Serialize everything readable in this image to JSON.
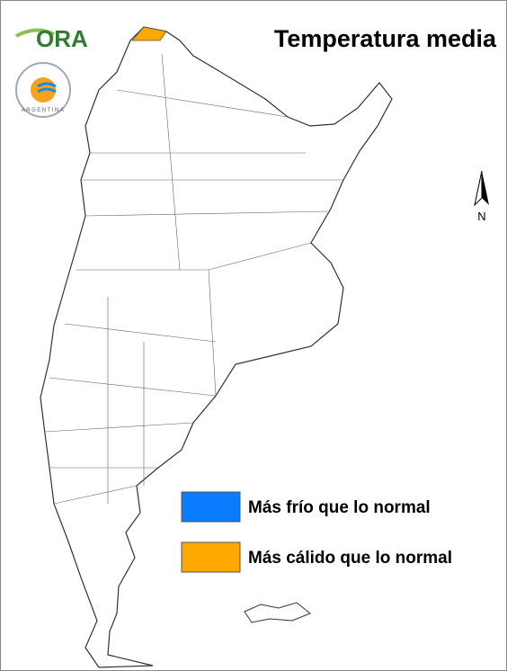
{
  "header": {
    "title": "Temperatura media"
  },
  "logos": {
    "ora": "ORA",
    "smn": "ARGENTINA"
  },
  "north_arrow": {
    "label": "N"
  },
  "legend": {
    "items": [
      {
        "name": "Más frío que lo normal",
        "color": "#0a7cff"
      },
      {
        "name": "Más cálido que lo normal",
        "color": "#ffa800"
      }
    ]
  }
}
